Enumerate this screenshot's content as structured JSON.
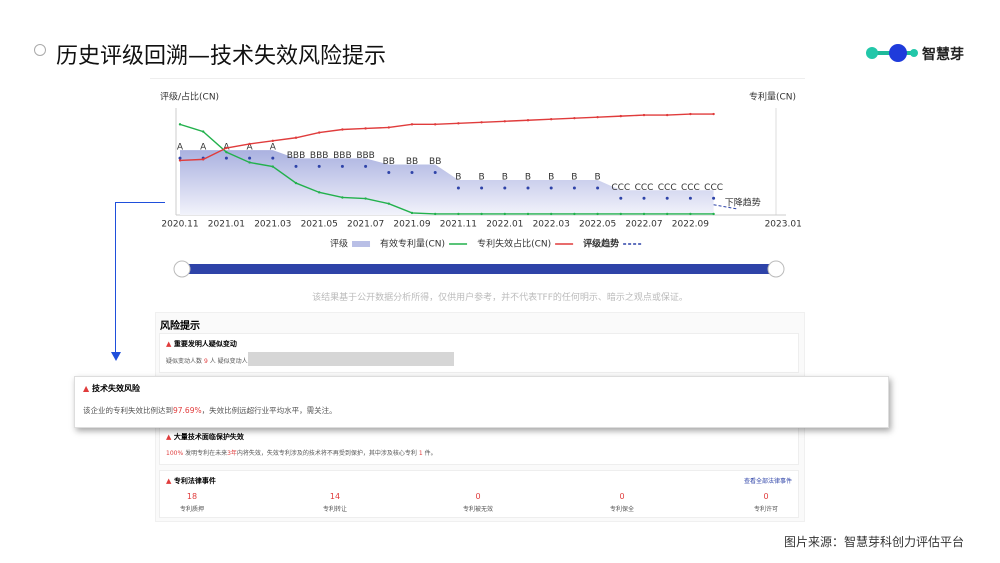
{
  "header": {
    "title": "历史评级回溯—技术失效风险提示",
    "logo": "智慧芽"
  },
  "chart_data": {
    "type": "line",
    "y_label": "评级/占比(CN)",
    "y2_label": "专利量(CN)",
    "categories": [
      "2020.11",
      null,
      "2021.01",
      null,
      "2021.03",
      null,
      "2021.05",
      null,
      "2021.07",
      null,
      "2021.09",
      null,
      "2021.11",
      null,
      "2022.01",
      null,
      "2022.03",
      null,
      "2022.05",
      null,
      "2022.07",
      null,
      "2022.09",
      null,
      null,
      null,
      "2023.01"
    ],
    "ylim": [
      0,
      100
    ],
    "y2lim": [
      0,
      100
    ],
    "series": [
      {
        "name": "评级",
        "type": "area",
        "color": "#b9bfe6",
        "values": [
          63,
          63,
          63,
          63,
          63,
          55,
          55,
          55,
          55,
          49,
          49,
          49,
          34,
          34,
          34,
          34,
          34,
          34,
          34,
          24,
          24,
          24,
          24,
          24,
          null,
          null,
          null
        ],
        "value_labels": [
          "A",
          "A",
          "A",
          "A",
          "A",
          "BBB",
          "BBB",
          "BBB",
          "BBB",
          "BB",
          "BB",
          "BB",
          "B",
          "B",
          "B",
          "B",
          "B",
          "B",
          "B",
          "CCC",
          "CCC",
          "CCC",
          "CCC",
          "CCC",
          null,
          null,
          null
        ]
      },
      {
        "name": "有效专利量(CN)",
        "color": "#22b14c",
        "axis": "y2",
        "values": [
          88,
          81,
          61,
          51,
          47,
          31,
          22,
          17,
          16,
          11,
          2,
          1,
          1,
          1,
          1,
          1,
          1,
          1,
          1,
          1,
          1,
          1,
          1,
          1,
          null,
          null,
          null
        ]
      },
      {
        "name": "专利失效占比(CN)",
        "color": "#e03c3c",
        "values": [
          53,
          54,
          65,
          69,
          72,
          75,
          80,
          83,
          84,
          85,
          88,
          88,
          89,
          90,
          91,
          92,
          93,
          94,
          95,
          96,
          97,
          97,
          98,
          98,
          null,
          null,
          null
        ]
      },
      {
        "name": "评级趋势",
        "color": "#2e43a8",
        "type": "trend",
        "values": [
          null,
          null,
          null,
          null,
          null,
          null,
          null,
          null,
          null,
          null,
          null,
          null,
          null,
          null,
          null,
          null,
          null,
          null,
          null,
          null,
          null,
          null,
          null,
          10,
          6,
          null,
          null
        ],
        "value_labels": [
          null,
          null,
          null,
          null,
          null,
          null,
          null,
          null,
          null,
          null,
          null,
          null,
          null,
          null,
          null,
          null,
          null,
          null,
          null,
          null,
          null,
          null,
          null,
          null,
          "下降趋势",
          null,
          null
        ]
      }
    ]
  },
  "disclaimer": "该结果基于公开数据分析所得，仅供用户参考，并不代表TFF的任何明示、暗示之观点或保证。",
  "risk": {
    "title": "风险提示",
    "inventor": {
      "title": "重要发明人疑似变动",
      "text1": "疑似变动人数",
      "count": "9",
      "unit": "人",
      "text2": "疑似变动人"
    },
    "popup": {
      "title": "技术失效风险",
      "pre": "该企业的专利失效比例达到",
      "value": "97.69%",
      "post": "，失效比例远超行业平均水平，需关注。"
    },
    "protection": {
      "title": "大量技术面临保护失效",
      "pct": "100%",
      "t1": " 发明专利在未来",
      "yrs": "3年",
      "t2": "内将失效，失效专利涉及的技术将不再受到保护，其中涉及核心专利 ",
      "n": "1",
      "t3": " 件。"
    },
    "legal": {
      "title": "专利法律事件",
      "link": "查看全部法律事件",
      "stats": [
        {
          "value": 18,
          "label": "专利质押"
        },
        {
          "value": 14,
          "label": "专利转让"
        },
        {
          "value": 0,
          "label": "专利被无效"
        },
        {
          "value": 0,
          "label": "专利保全"
        },
        {
          "value": 0,
          "label": "专利许可"
        }
      ]
    }
  },
  "footer": "图片来源：智慧芽科创力评估平台"
}
